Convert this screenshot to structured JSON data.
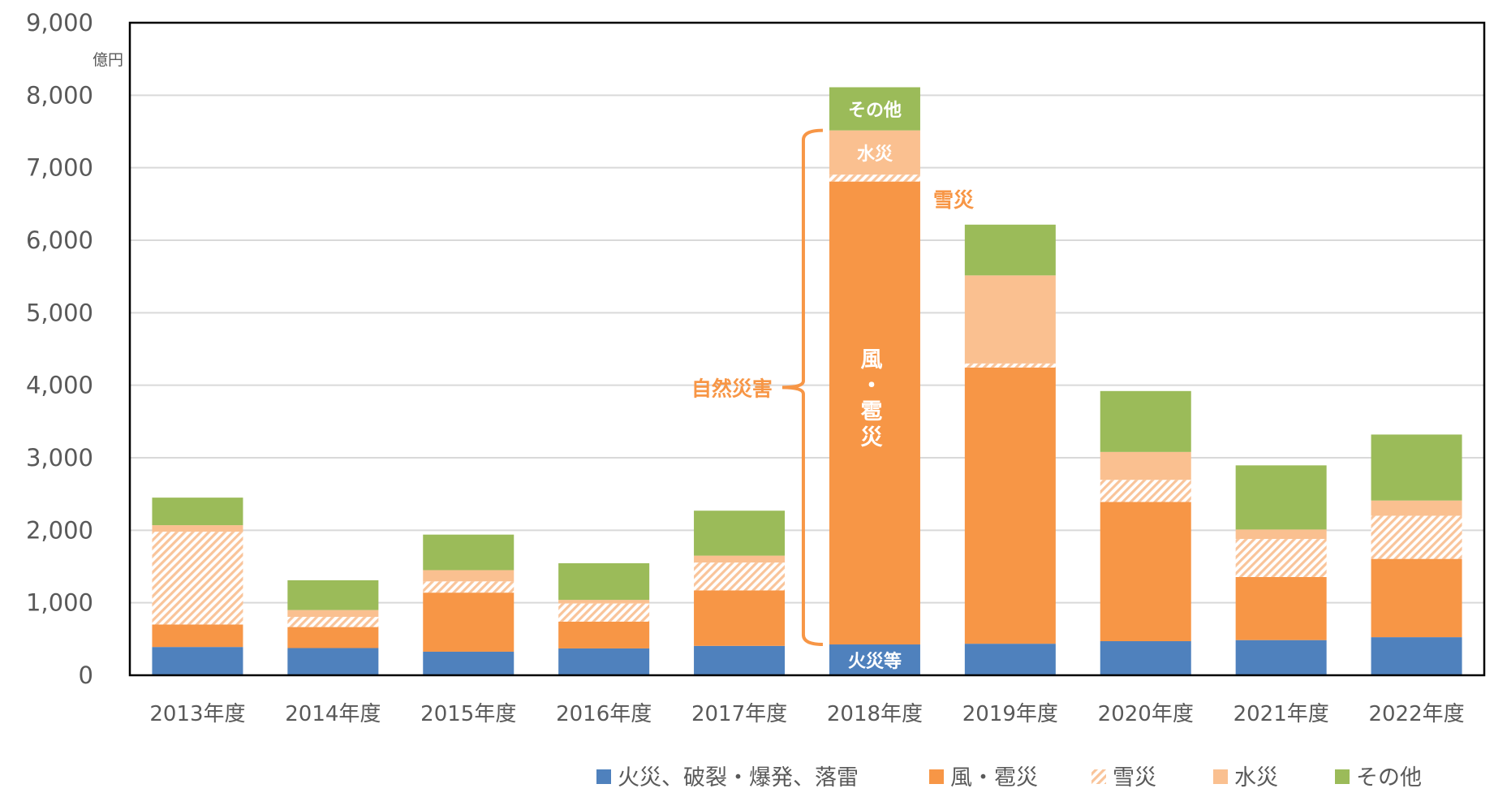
{
  "chart_data": {
    "type": "bar",
    "stacked": true,
    "unit_label": "億円",
    "categories": [
      "2013年度",
      "2014年度",
      "2015年度",
      "2016年度",
      "2017年度",
      "2018年度",
      "2019年度",
      "2020年度",
      "2021年度",
      "2022年度"
    ],
    "ylim": [
      0,
      9000
    ],
    "yticks": [
      0,
      1000,
      2000,
      3000,
      4000,
      5000,
      6000,
      7000,
      8000,
      9000
    ],
    "ytick_labels": [
      "0",
      "1,000",
      "2,000",
      "3,000",
      "4,000",
      "5,000",
      "6,000",
      "7,000",
      "8,000",
      "9,000"
    ],
    "grid": true,
    "legend_position": "bottom-right",
    "series": [
      {
        "name": "火災、破裂・爆発、落雷",
        "color": "#4f81bd",
        "pattern": "solid",
        "values": [
          390,
          375,
          325,
          370,
          405,
          425,
          435,
          470,
          485,
          525
        ]
      },
      {
        "name": "風・雹災",
        "color": "#f79646",
        "pattern": "solid",
        "values": [
          310,
          290,
          815,
          370,
          765,
          6385,
          3810,
          1920,
          870,
          1080
        ]
      },
      {
        "name": "雪災",
        "color": "#f79646",
        "pattern": "hatched",
        "values": [
          1280,
          140,
          155,
          250,
          385,
          95,
          55,
          305,
          525,
          595
        ]
      },
      {
        "name": "水災",
        "color": "#fac090",
        "pattern": "solid",
        "values": [
          90,
          95,
          155,
          50,
          95,
          610,
          1215,
          385,
          130,
          210
        ]
      },
      {
        "name": "その他",
        "color": "#9bbb59",
        "pattern": "solid",
        "values": [
          380,
          410,
          490,
          505,
          620,
          595,
          700,
          840,
          885,
          910
        ]
      }
    ],
    "annotations": {
      "fire": "火災等",
      "wind_vertical": [
        "風",
        "・",
        "雹",
        "災"
      ],
      "snow": "雪災",
      "water": "水災",
      "other": "その他",
      "natural_disaster": "自然災害"
    }
  }
}
